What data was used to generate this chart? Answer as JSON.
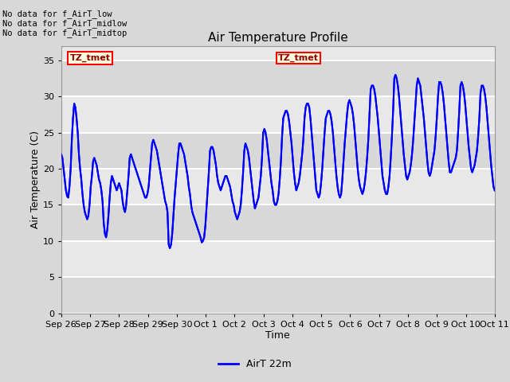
{
  "title": "Air Temperature Profile",
  "xlabel": "Time",
  "ylabel": "Air Temperature (C)",
  "ylim": [
    0,
    37
  ],
  "yticks": [
    0,
    5,
    10,
    15,
    20,
    25,
    30,
    35
  ],
  "line_color": "blue",
  "line_width": 1.5,
  "fig_facecolor": "#d8d8d8",
  "plot_facecolor": "#e8e8e8",
  "legend_label": "AirT 22m",
  "annotations_left": [
    "No data for f_AirT_low",
    "No data for f_AirT_midlow",
    "No data for f_AirT_midtop"
  ],
  "annotation_box_text": "TZ_tmet",
  "x_tick_labels": [
    "Sep 26",
    "Sep 27",
    "Sep 28",
    "Sep 29",
    "Sep 30",
    "Oct 1",
    "Oct 2",
    "Oct 3",
    "Oct 4",
    "Oct 5",
    "Oct 6",
    "Oct 7",
    "Oct 8",
    "Oct 9",
    "Oct 10",
    "Oct 11"
  ],
  "x_tick_positions": [
    0,
    1,
    2,
    3,
    4,
    5,
    6,
    7,
    8,
    9,
    10,
    11,
    12,
    13,
    14,
    15
  ],
  "temperature_data": [
    22.0,
    21.5,
    20.0,
    18.5,
    17.0,
    16.2,
    16.0,
    17.5,
    20.0,
    24.0,
    27.0,
    29.0,
    28.5,
    27.0,
    25.0,
    22.0,
    20.0,
    18.5,
    16.5,
    15.0,
    14.0,
    13.5,
    13.0,
    13.5,
    15.0,
    17.5,
    19.0,
    21.0,
    21.5,
    21.0,
    20.5,
    19.5,
    18.5,
    18.0,
    17.0,
    15.5,
    12.5,
    11.0,
    10.5,
    11.5,
    13.5,
    16.0,
    18.0,
    19.0,
    18.5,
    18.0,
    17.5,
    17.0,
    17.5,
    18.0,
    17.5,
    17.0,
    15.5,
    14.5,
    14.0,
    15.0,
    17.0,
    19.0,
    21.5,
    22.0,
    21.5,
    21.0,
    20.5,
    20.0,
    19.5,
    19.0,
    18.5,
    18.0,
    17.5,
    17.0,
    16.5,
    16.0,
    16.0,
    16.5,
    17.5,
    19.5,
    21.5,
    23.5,
    24.0,
    23.5,
    23.0,
    22.5,
    21.5,
    20.5,
    19.5,
    18.5,
    17.5,
    16.5,
    15.5,
    15.0,
    14.0,
    9.5,
    9.0,
    9.5,
    11.0,
    13.5,
    16.0,
    18.0,
    20.0,
    22.0,
    23.5,
    23.5,
    23.0,
    22.5,
    22.0,
    21.0,
    20.0,
    19.0,
    17.5,
    16.5,
    15.0,
    14.0,
    13.5,
    13.0,
    12.5,
    12.0,
    11.5,
    11.0,
    10.5,
    9.8,
    10.0,
    10.5,
    12.0,
    14.5,
    17.0,
    19.5,
    22.5,
    23.0,
    23.0,
    22.5,
    21.5,
    20.5,
    19.0,
    18.0,
    17.5,
    17.0,
    17.5,
    18.0,
    18.5,
    19.0,
    19.0,
    18.5,
    18.0,
    17.5,
    16.5,
    15.5,
    15.0,
    14.0,
    13.5,
    13.0,
    13.5,
    14.0,
    15.0,
    17.0,
    19.5,
    22.5,
    23.5,
    23.0,
    22.5,
    21.5,
    20.0,
    18.5,
    17.0,
    15.5,
    14.5,
    15.0,
    15.5,
    16.0,
    17.5,
    19.0,
    21.5,
    25.0,
    25.5,
    25.0,
    24.0,
    22.5,
    21.0,
    19.5,
    18.0,
    17.0,
    15.5,
    15.0,
    15.0,
    15.5,
    16.5,
    18.5,
    21.0,
    24.5,
    27.0,
    27.5,
    28.0,
    28.0,
    27.5,
    26.5,
    25.0,
    23.5,
    21.5,
    19.5,
    18.0,
    17.0,
    17.5,
    18.0,
    19.0,
    20.5,
    22.0,
    24.0,
    27.0,
    28.5,
    29.0,
    29.0,
    28.5,
    27.0,
    25.0,
    23.0,
    21.0,
    19.0,
    17.0,
    16.5,
    16.0,
    16.5,
    18.0,
    20.0,
    22.5,
    25.0,
    27.0,
    27.5,
    28.0,
    28.0,
    27.5,
    26.5,
    25.0,
    23.0,
    21.0,
    19.0,
    17.5,
    16.5,
    16.0,
    16.5,
    18.5,
    21.0,
    23.5,
    25.5,
    27.5,
    29.0,
    29.5,
    29.0,
    28.5,
    27.5,
    26.0,
    24.0,
    22.0,
    20.0,
    18.5,
    17.5,
    17.0,
    16.5,
    17.0,
    18.0,
    19.5,
    21.5,
    24.0,
    27.5,
    31.0,
    31.5,
    31.5,
    31.0,
    30.0,
    28.5,
    27.0,
    25.0,
    23.0,
    21.0,
    19.0,
    18.0,
    17.0,
    16.5,
    16.5,
    17.5,
    19.0,
    21.5,
    24.5,
    28.0,
    32.5,
    33.0,
    32.5,
    31.5,
    30.0,
    28.0,
    26.0,
    24.0,
    22.0,
    20.5,
    19.0,
    18.5,
    19.0,
    19.5,
    20.5,
    22.0,
    24.0,
    26.5,
    29.0,
    31.5,
    32.5,
    32.0,
    31.5,
    30.0,
    28.5,
    27.0,
    25.0,
    23.0,
    21.0,
    19.5,
    19.0,
    19.5,
    20.5,
    21.5,
    22.5,
    24.5,
    27.0,
    30.0,
    32.0,
    32.0,
    31.5,
    30.5,
    29.0,
    27.0,
    25.0,
    23.0,
    21.0,
    19.5,
    19.5,
    20.0,
    20.5,
    21.0,
    21.5,
    22.5,
    25.0,
    28.0,
    31.5,
    32.0,
    31.5,
    30.5,
    29.0,
    27.0,
    25.0,
    23.0,
    21.5,
    20.0,
    19.5,
    20.0,
    20.5,
    21.5,
    22.5,
    24.5,
    27.0,
    30.5,
    31.5,
    31.5,
    31.0,
    30.0,
    28.5,
    26.5,
    24.5,
    22.5,
    20.5,
    19.0,
    17.5,
    17.0
  ]
}
